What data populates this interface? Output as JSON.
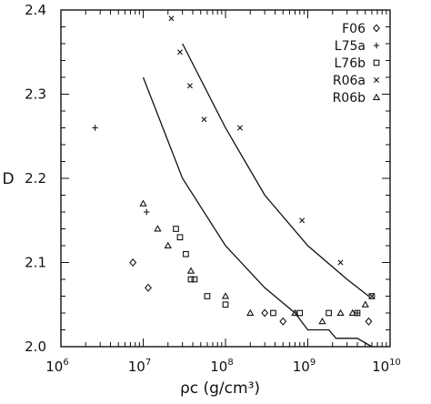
{
  "chart_data": {
    "type": "scatter",
    "xlabel": "ρc (g/cm³)",
    "ylabel": "D",
    "xscale": "log",
    "xlim": [
      1000000,
      10000000000
    ],
    "ylim": [
      2.0,
      2.4
    ],
    "x_tick_labels": [
      {
        "base": "10",
        "exp": "6"
      },
      {
        "base": "10",
        "exp": "7"
      },
      {
        "base": "10",
        "exp": "8"
      },
      {
        "base": "10",
        "exp": "9"
      },
      {
        "base": "10",
        "exp": "10"
      }
    ],
    "x_tick_values": [
      1000000,
      10000000,
      100000000,
      1000000000,
      10000000000
    ],
    "y_ticks": [
      "2.0",
      "2.1",
      "2.2",
      "2.3",
      "2.4"
    ],
    "y_tick_values": [
      2.0,
      2.1,
      2.2,
      2.3,
      2.4
    ],
    "legend_position": "top-right",
    "series": [
      {
        "name": "F06",
        "marker": "diamond",
        "points": [
          [
            7500000,
            2.1
          ],
          [
            11500000,
            2.07
          ],
          [
            300000000,
            2.04
          ],
          [
            500000000,
            2.03
          ],
          [
            5500000000,
            2.03
          ]
        ]
      },
      {
        "name": "L75a",
        "marker": "plus",
        "points": [
          [
            2600000,
            2.26
          ],
          [
            11000000,
            2.16
          ],
          [
            4000000000,
            2.04
          ]
        ]
      },
      {
        "name": "L76b",
        "marker": "square",
        "points": [
          [
            25000000,
            2.14
          ],
          [
            28000000,
            2.13
          ],
          [
            33000000,
            2.11
          ],
          [
            38000000,
            2.08
          ],
          [
            42000000,
            2.08
          ],
          [
            60000000,
            2.06
          ],
          [
            100000000,
            2.05
          ],
          [
            380000000,
            2.04
          ],
          [
            800000000,
            2.04
          ],
          [
            1800000000,
            2.04
          ],
          [
            4000000000,
            2.04
          ],
          [
            6000000000,
            2.06
          ]
        ]
      },
      {
        "name": "R06a",
        "marker": "x",
        "points": [
          [
            22000000,
            2.39
          ],
          [
            28000000,
            2.35
          ],
          [
            37000000,
            2.31
          ],
          [
            55000000,
            2.27
          ],
          [
            150000000,
            2.26
          ],
          [
            850000000,
            2.15
          ],
          [
            2500000000,
            2.1
          ],
          [
            6000000000,
            2.06
          ]
        ]
      },
      {
        "name": "R06b",
        "marker": "triangle",
        "points": [
          [
            10000000,
            2.17
          ],
          [
            15000000,
            2.14
          ],
          [
            20000000,
            2.12
          ],
          [
            38000000,
            2.09
          ],
          [
            100000000,
            2.06
          ],
          [
            200000000,
            2.04
          ],
          [
            700000000,
            2.04
          ],
          [
            1500000000,
            2.03
          ],
          [
            2500000000,
            2.04
          ],
          [
            3500000000,
            2.04
          ],
          [
            5000000000,
            2.05
          ]
        ]
      }
    ],
    "curves": [
      {
        "points": [
          [
            10000000,
            2.32
          ],
          [
            30000000,
            2.2
          ],
          [
            100000000,
            2.12
          ],
          [
            300000000,
            2.07
          ],
          [
            700000000,
            2.04
          ],
          [
            1000000000,
            2.02
          ],
          [
            1800000000,
            2.02
          ],
          [
            2200000000,
            2.01
          ],
          [
            4000000000,
            2.01
          ],
          [
            6000000000,
            2.0
          ]
        ]
      },
      {
        "points": [
          [
            30000000,
            2.36
          ],
          [
            100000000,
            2.26
          ],
          [
            300000000,
            2.18
          ],
          [
            1000000000,
            2.12
          ],
          [
            3000000000,
            2.08
          ],
          [
            5500000000,
            2.06
          ]
        ]
      }
    ]
  }
}
